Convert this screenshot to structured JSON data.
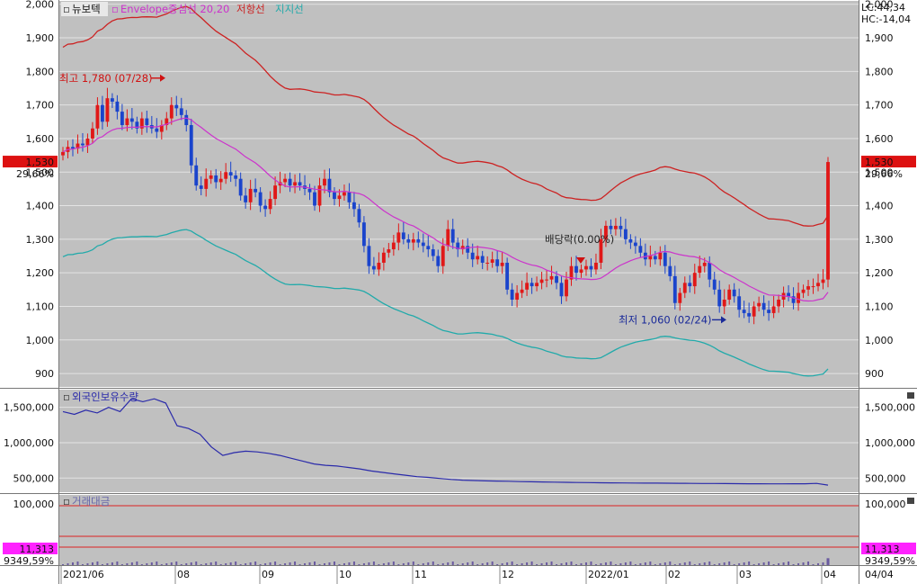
{
  "header": {
    "stock_name": "뉴보텍",
    "legend": [
      {
        "label": "Envelope중심선 20,20",
        "color": "#cc33cc"
      },
      {
        "label": "저항선",
        "color": "#cc2222"
      },
      {
        "label": "지지선",
        "color": "#22aaaa"
      }
    ],
    "lc_label": "LC:44,34",
    "hc_label": "HC:-14,04"
  },
  "colors": {
    "panel_bg": "#c0c0c0",
    "axis_bg": "#ffffff",
    "up": "#e01818",
    "down": "#1a44cc",
    "center": "#cc33cc",
    "resistance": "#cc2222",
    "support": "#22aaaa",
    "foreign": "#2a2aaa",
    "price_badge": "#dd1111",
    "amount_badge": "#ff22ff"
  },
  "chart_data": [
    {
      "type": "candlestick",
      "name": "price",
      "y_ticks": [
        "2,000",
        "1,900",
        "1,800",
        "1,700",
        "1,600",
        "1,500",
        "1,400",
        "1,300",
        "1,200",
        "1,100",
        "1,000",
        "900"
      ],
      "ylim": [
        860,
        2010
      ],
      "current_price": {
        "value": 1530,
        "label": "1,530",
        "pct": "29,66%"
      },
      "annotations": {
        "high": {
          "text": "최고 1,780 (07/28)",
          "value": 1780
        },
        "low": {
          "text": "최저 1,060 (02/24)",
          "value": 1060
        },
        "dividend": {
          "text": "배당락(0.00%)"
        }
      },
      "close": [
        1560,
        1575,
        1570,
        1585,
        1580,
        1600,
        1630,
        1700,
        1650,
        1720,
        1710,
        1680,
        1640,
        1660,
        1650,
        1630,
        1660,
        1640,
        1630,
        1620,
        1640,
        1660,
        1700,
        1690,
        1670,
        1640,
        1520,
        1460,
        1450,
        1480,
        1490,
        1470,
        1480,
        1500,
        1490,
        1480,
        1430,
        1410,
        1450,
        1440,
        1400,
        1390,
        1420,
        1460,
        1470,
        1480,
        1460,
        1470,
        1460,
        1450,
        1440,
        1400,
        1460,
        1480,
        1440,
        1420,
        1430,
        1440,
        1410,
        1390,
        1350,
        1280,
        1220,
        1210,
        1230,
        1260,
        1270,
        1290,
        1320,
        1300,
        1290,
        1300,
        1290,
        1280,
        1270,
        1250,
        1220,
        1280,
        1330,
        1290,
        1270,
        1280,
        1260,
        1240,
        1250,
        1230,
        1230,
        1240,
        1220,
        1230,
        1150,
        1120,
        1140,
        1150,
        1170,
        1160,
        1170,
        1180,
        1180,
        1190,
        1170,
        1130,
        1180,
        1220,
        1200,
        1210,
        1220,
        1210,
        1230,
        1300,
        1340,
        1330,
        1340,
        1330,
        1300,
        1290,
        1280,
        1260,
        1240,
        1250,
        1240,
        1260,
        1220,
        1190,
        1110,
        1140,
        1170,
        1160,
        1200,
        1220,
        1230,
        1180,
        1150,
        1100,
        1120,
        1150,
        1130,
        1090,
        1080,
        1070,
        1100,
        1110,
        1090,
        1080,
        1100,
        1120,
        1140,
        1130,
        1110,
        1140,
        1150,
        1160,
        1160,
        1170,
        1180,
        1530
      ]
    },
    {
      "type": "line",
      "name": "외국인보유수량",
      "y_ticks": [
        "1,500,000",
        "1,000,000",
        "500,000"
      ],
      "ylim": [
        300000,
        1750000
      ],
      "values": [
        1440000,
        1400000,
        1460000,
        1420000,
        1500000,
        1440000,
        1620000,
        1580000,
        1620000,
        1560000,
        1240000,
        1200000,
        1120000,
        940000,
        820000,
        860000,
        880000,
        870000,
        850000,
        820000,
        780000,
        740000,
        700000,
        680000,
        670000,
        650000,
        630000,
        600000,
        580000,
        560000,
        540000,
        520000,
        510000,
        495000,
        480000,
        470000,
        465000,
        460000,
        458000,
        455000,
        450000,
        448000,
        445000,
        443000,
        440000,
        438000,
        436000,
        434000,
        432000,
        431000,
        430000,
        429000,
        428000,
        427000,
        426000,
        425000,
        424000,
        423000,
        422000,
        421000,
        420000,
        419000,
        418000,
        418000,
        419000,
        420000,
        425000,
        400000
      ]
    },
    {
      "type": "bar",
      "name": "거래대금",
      "y_ticks": [
        "100,000"
      ],
      "ylim": [
        0,
        115000
      ],
      "current_value": {
        "label": "11,313",
        "pct": "9349,59%"
      },
      "last_value": 11313
    }
  ],
  "x_axis": {
    "ticks": [
      "2021/06",
      "08",
      "09",
      "10",
      "11",
      "12",
      "2022/01",
      "02",
      "03",
      "04"
    ],
    "right_label": "04/04"
  }
}
